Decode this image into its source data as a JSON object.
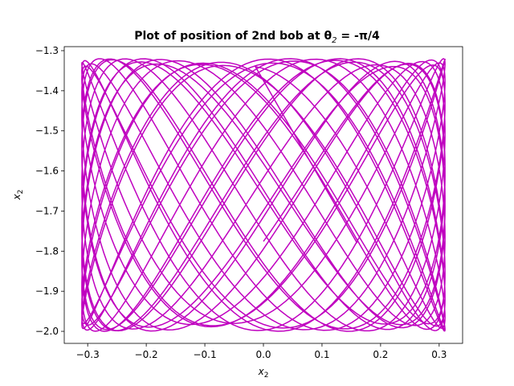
{
  "chart_data": {
    "type": "line",
    "title": "Plot of position of 2nd bob at θ",
    "title_sub": "2",
    "title_rest": " = -π/4",
    "xlabel": "x",
    "xlabel_sub": "2",
    "ylabel": "x",
    "ylabel_sub": "2",
    "xlim": [
      -0.34,
      0.34
    ],
    "ylim": [
      -2.03,
      -1.29
    ],
    "x_ticks": [
      -0.3,
      -0.2,
      -0.1,
      0.0,
      0.1,
      0.2,
      0.3
    ],
    "x_tick_labels": [
      "−0.3",
      "−0.2",
      "−0.1",
      "0.0",
      "0.1",
      "0.2",
      "0.3"
    ],
    "y_ticks": [
      -1.3,
      -1.4,
      -1.5,
      -1.6,
      -1.7,
      -1.8,
      -1.9,
      -2.0
    ],
    "y_tick_labels": [
      "−1.3",
      "−1.4",
      "−1.5",
      "−1.6",
      "−1.7",
      "−1.8",
      "−1.9",
      "−2.0"
    ],
    "grid": false,
    "series": [
      {
        "color": "#bf00bf",
        "curve": {
          "x_amplitude": 0.31,
          "x_frequency": 1.0,
          "y_center": -1.66,
          "y_amplitude": 0.34,
          "y_frequency": 2.13,
          "phase": 1.2,
          "t_range": [
            0,
            110
          ],
          "samples": 3200,
          "end_point": [
            0.16,
            -1.78
          ]
        }
      }
    ]
  },
  "colors": {
    "line": "#bf00bf",
    "axes": "#000000",
    "background": "#ffffff"
  }
}
